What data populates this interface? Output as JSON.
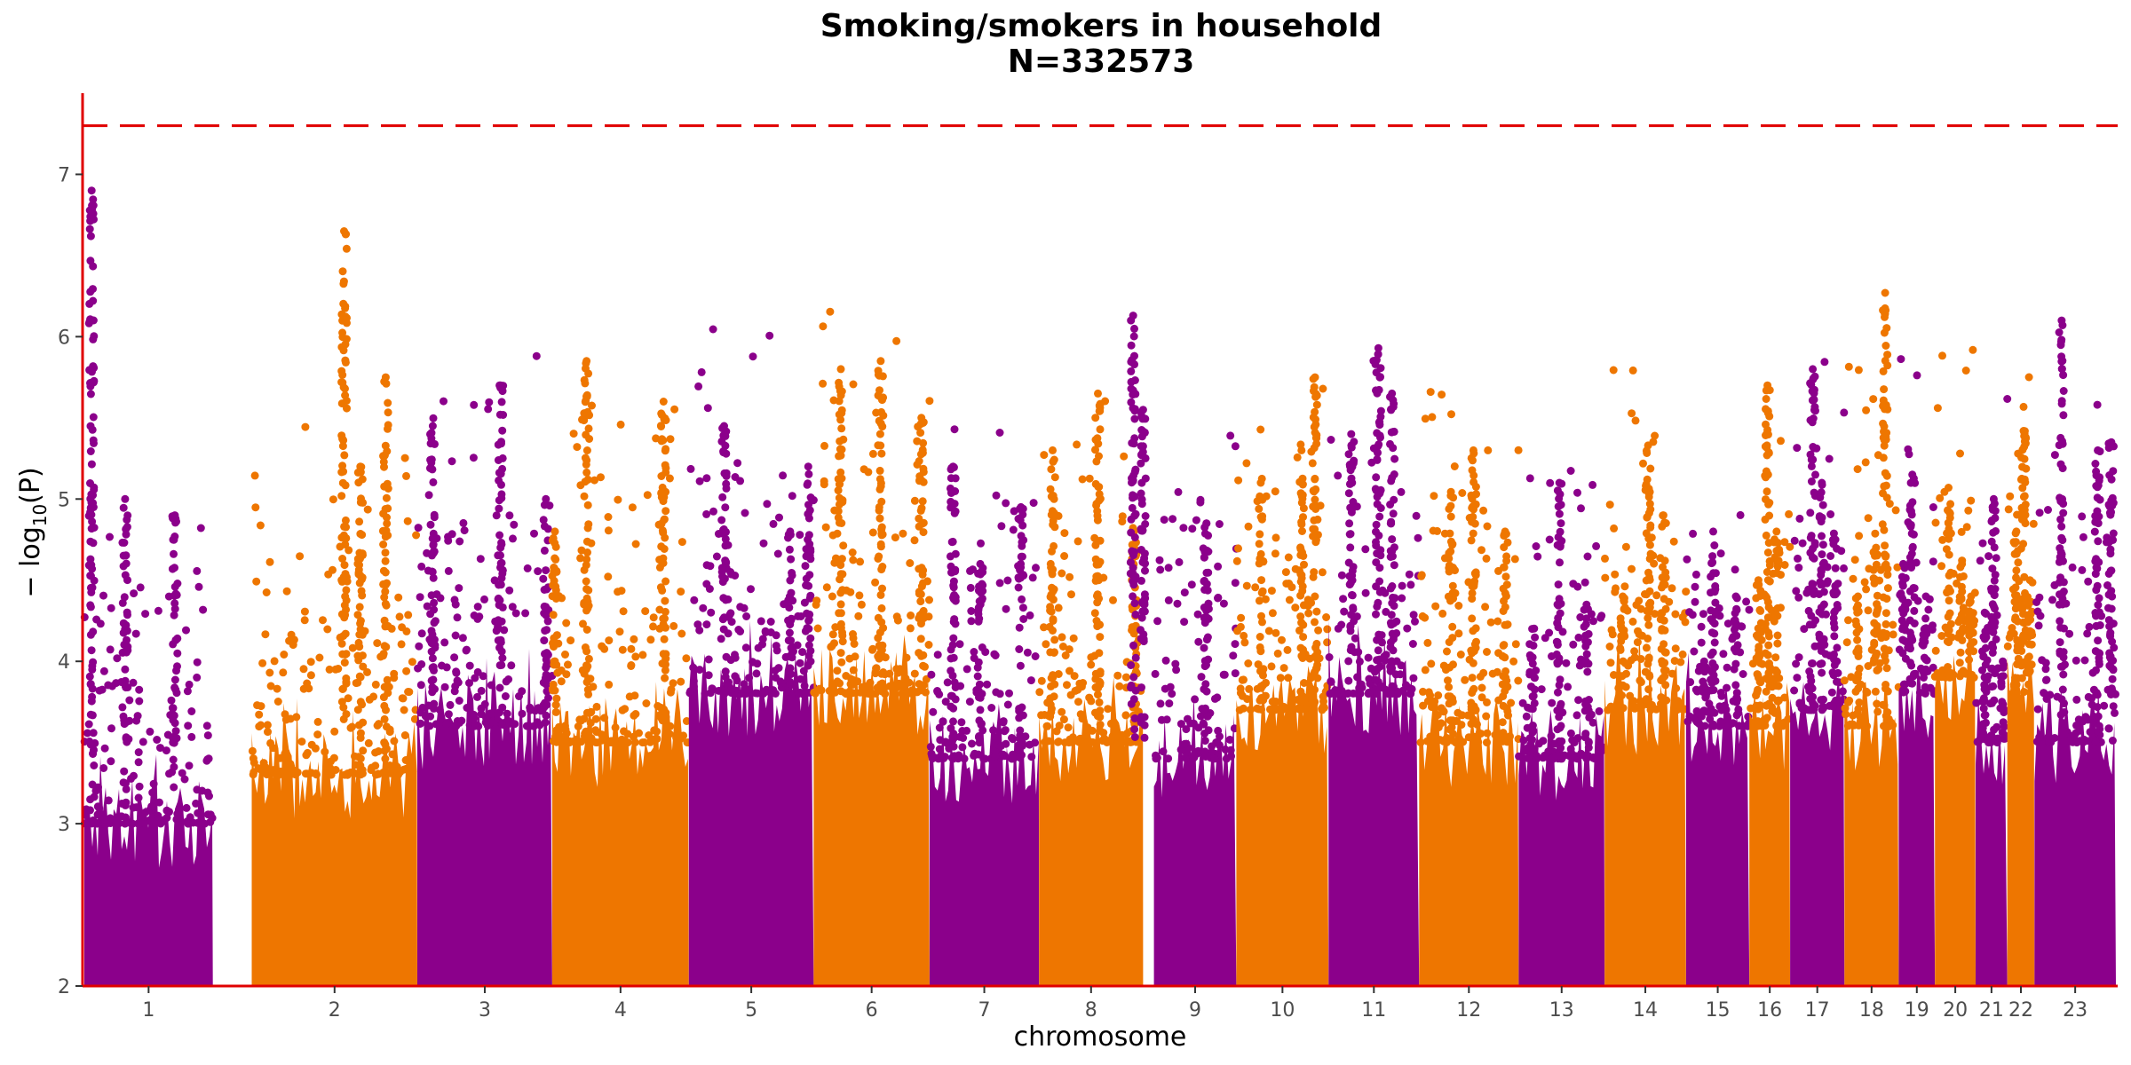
{
  "chart_data": {
    "type": "scatter",
    "title": "Smoking/smokers in household",
    "subtitle": "N=332573",
    "xlabel": "chromosome",
    "ylabel": "− log10(P)",
    "ylabel_main": "− log",
    "ylabel_sub": "10",
    "ylabel_tail": "(P)",
    "ylim": [
      2,
      7.5
    ],
    "y_ticks": [
      "2",
      "3",
      "4",
      "5",
      "6",
      "7"
    ],
    "significance_line": 7.3,
    "grid": false,
    "colors": {
      "odd": "#8B008B",
      "even": "#EE7600",
      "axis": "#e00000",
      "threshold": "#e00000"
    },
    "chromosomes": [
      {
        "label": "1",
        "span": [
          0,
          142
        ],
        "base": 3.0,
        "peaks": [
          [
            8,
            6.9
          ],
          [
            45,
            5.0
          ],
          [
            100,
            4.9
          ]
        ]
      },
      {
        "label": "2",
        "span": [
          185,
          368
        ],
        "base": 3.3,
        "peaks": [
          [
            287,
            6.65
          ],
          [
            333,
            5.75
          ],
          [
            305,
            5.2
          ]
        ]
      },
      {
        "label": "3",
        "span": [
          368,
          517
        ],
        "base": 3.6,
        "peaks": [
          [
            460,
            5.7
          ],
          [
            510,
            5.0
          ],
          [
            385,
            5.45
          ]
        ]
      },
      {
        "label": "4",
        "span": [
          517,
          668
        ],
        "base": 3.5,
        "peaks": [
          [
            555,
            5.85
          ],
          [
            640,
            5.6
          ],
          [
            520,
            4.8
          ]
        ]
      },
      {
        "label": "5",
        "span": [
          668,
          806
        ],
        "base": 3.8,
        "peaks": [
          [
            707,
            5.45
          ],
          [
            800,
            5.2
          ],
          [
            780,
            4.8
          ]
        ]
      },
      {
        "label": "6",
        "span": [
          806,
          934
        ],
        "base": 3.8,
        "peaks": [
          [
            836,
            5.8
          ],
          [
            880,
            5.85
          ],
          [
            925,
            5.5
          ]
        ]
      },
      {
        "label": "7",
        "span": [
          934,
          1055
        ],
        "base": 3.4,
        "peaks": [
          [
            960,
            5.2
          ],
          [
            1035,
            4.95
          ],
          [
            990,
            4.6
          ]
        ]
      },
      {
        "label": "8",
        "span": [
          1055,
          1170
        ],
        "base": 3.5,
        "peaks": [
          [
            1120,
            5.65
          ],
          [
            1070,
            5.3
          ],
          [
            1160,
            4.8
          ]
        ]
      },
      {
        "label": "9",
        "span": [
          1182,
          1273
        ],
        "base": 3.4,
        "peaks": [
          [
            1159,
            6.13
          ],
          [
            1170,
            5.55
          ],
          [
            1240,
            4.85
          ]
        ]
      },
      {
        "label": "10",
        "span": [
          1273,
          1375
        ],
        "base": 3.7,
        "peaks": [
          [
            1360,
            5.75
          ],
          [
            1300,
            5.1
          ],
          [
            1345,
            5.3
          ]
        ]
      },
      {
        "label": "11",
        "span": [
          1375,
          1475
        ],
        "base": 3.8,
        "peaks": [
          [
            1430,
            5.93
          ],
          [
            1445,
            5.65
          ],
          [
            1400,
            5.4
          ]
        ]
      },
      {
        "label": "12",
        "span": [
          1475,
          1585
        ],
        "base": 3.5,
        "peaks": [
          [
            1510,
            5.02
          ],
          [
            1535,
            5.3
          ],
          [
            1570,
            4.8
          ]
        ]
      },
      {
        "label": "13",
        "span": [
          1585,
          1680
        ],
        "base": 3.4,
        "peaks": [
          [
            1630,
            5.1
          ],
          [
            1660,
            4.35
          ],
          [
            1600,
            4.2
          ]
        ]
      },
      {
        "label": "14",
        "span": [
          1680,
          1770
        ],
        "base": 3.7,
        "peaks": [
          [
            1728,
            5.33
          ],
          [
            1745,
            4.9
          ],
          [
            1700,
            4.4
          ]
        ]
      },
      {
        "label": "15",
        "span": [
          1770,
          1840
        ],
        "base": 3.6,
        "peaks": [
          [
            1800,
            4.8
          ],
          [
            1825,
            4.4
          ],
          [
            1790,
            4.0
          ]
        ]
      },
      {
        "label": "16",
        "span": [
          1840,
          1885
        ],
        "base": 3.6,
        "peaks": [
          [
            1860,
            5.7
          ],
          [
            1870,
            4.8
          ],
          [
            1850,
            4.5
          ]
        ]
      },
      {
        "label": "17",
        "span": [
          1885,
          1945
        ],
        "base": 3.7,
        "peaks": [
          [
            1910,
            5.8
          ],
          [
            1920,
            5.1
          ],
          [
            1935,
            4.75
          ]
        ]
      },
      {
        "label": "18",
        "span": [
          1945,
          2005
        ],
        "base": 3.6,
        "peaks": [
          [
            1990,
            6.27
          ],
          [
            1980,
            4.7
          ],
          [
            1960,
            4.4
          ]
        ]
      },
      {
        "label": "19",
        "span": [
          2005,
          2045
        ],
        "base": 3.8,
        "peaks": [
          [
            2020,
            5.15
          ],
          [
            2035,
            4.4
          ],
          [
            2010,
            4.6
          ]
        ]
      },
      {
        "label": "20",
        "span": [
          2045,
          2090
        ],
        "base": 3.9,
        "peaks": [
          [
            2060,
            5.07
          ],
          [
            2075,
            4.6
          ],
          [
            2085,
            4.4
          ]
        ]
      },
      {
        "label": "21",
        "span": [
          2090,
          2125
        ],
        "base": 3.5,
        "peaks": [
          [
            2110,
            5.0
          ],
          [
            2100,
            4.3
          ],
          [
            2120,
            4.0
          ]
        ]
      },
      {
        "label": "22",
        "span": [
          2125,
          2155
        ],
        "base": 3.8,
        "peaks": [
          [
            2143,
            5.42
          ],
          [
            2135,
            4.8
          ],
          [
            2150,
            4.5
          ]
        ]
      },
      {
        "label": "23",
        "span": [
          2155,
          2245
        ],
        "base": 3.5,
        "peaks": [
          [
            2185,
            6.1
          ],
          [
            2225,
            5.3
          ],
          [
            2240,
            5.35
          ]
        ]
      }
    ],
    "gap_spans": [
      [
        142,
        185
      ],
      [
        1170,
        1182
      ]
    ]
  }
}
